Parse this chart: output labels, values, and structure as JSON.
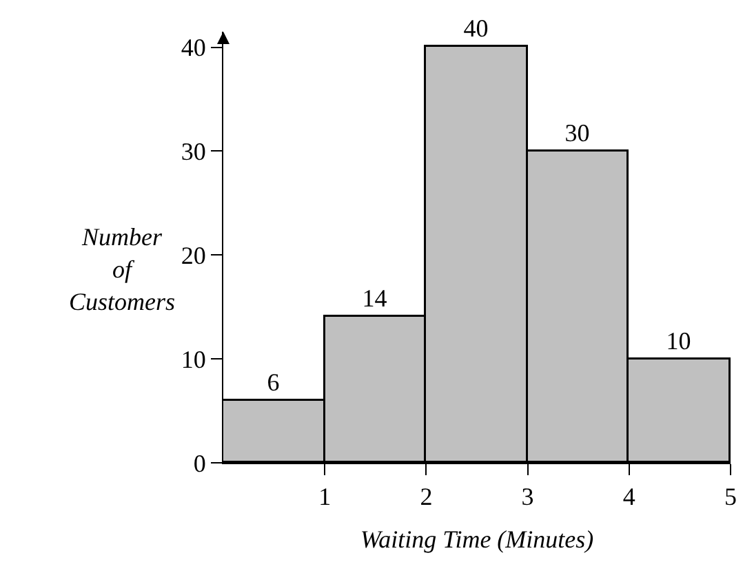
{
  "chart_data": {
    "type": "histogram",
    "bins": [
      0,
      1,
      2,
      3,
      4,
      5
    ],
    "values": [
      6,
      14,
      40,
      30,
      10
    ],
    "color": "#c0c0c0",
    "xlabel": "Waiting Time (Minutes)",
    "ylabel": "Number of Customers",
    "xlim": [
      0,
      5
    ],
    "xticks": [
      1,
      2,
      3,
      4,
      5
    ],
    "ylim": [
      0,
      41.5
    ],
    "yticks": [
      0,
      10,
      20,
      30,
      40
    ],
    "data_labels": true
  }
}
